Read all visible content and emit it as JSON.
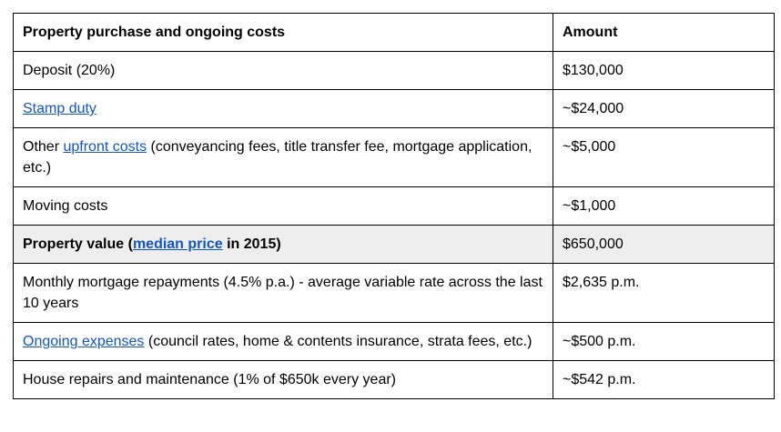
{
  "table": {
    "border_color": "#000000",
    "highlight_color": "#eeeeee",
    "link_color": "#1155cc",
    "columns": [
      {
        "label": "Property purchase and ongoing costs"
      },
      {
        "label": "Amount"
      }
    ],
    "rows": [
      {
        "label": [
          {
            "text": "Deposit (20%)",
            "link": false
          }
        ],
        "amount": "$130,000",
        "bold": false,
        "highlight": false
      },
      {
        "label": [
          {
            "text": "Stamp duty",
            "link": true
          }
        ],
        "amount": "~$24,000",
        "bold": false,
        "highlight": false
      },
      {
        "label": [
          {
            "text": "Other ",
            "link": false
          },
          {
            "text": "upfront costs",
            "link": true
          },
          {
            "text": " (conveyancing fees, title transfer fee, mortgage application, etc.)",
            "link": false
          }
        ],
        "amount": "~$5,000",
        "bold": false,
        "highlight": false
      },
      {
        "label": [
          {
            "text": "Moving costs",
            "link": false
          }
        ],
        "amount": "~$1,000",
        "bold": false,
        "highlight": false
      },
      {
        "label": [
          {
            "text": "Property value (",
            "link": false
          },
          {
            "text": "median price",
            "link": true
          },
          {
            "text": " in 2015)",
            "link": false
          }
        ],
        "amount": "$650,000",
        "bold": true,
        "highlight": true
      },
      {
        "label": [
          {
            "text": "Monthly mortgage repayments (4.5% p.a.) - average variable rate across the last 10 years",
            "link": false
          }
        ],
        "amount": "$2,635 p.m.",
        "bold": false,
        "highlight": false
      },
      {
        "label": [
          {
            "text": "Ongoing expenses",
            "link": true
          },
          {
            "text": " (council rates, home & contents insurance, strata fees, etc.)",
            "link": false
          }
        ],
        "amount": "~$500 p.m.",
        "bold": false,
        "highlight": false
      },
      {
        "label": [
          {
            "text": "House repairs and maintenance (1% of $650k every year)",
            "link": false
          }
        ],
        "amount": "~$542 p.m.",
        "bold": false,
        "highlight": false
      }
    ]
  }
}
